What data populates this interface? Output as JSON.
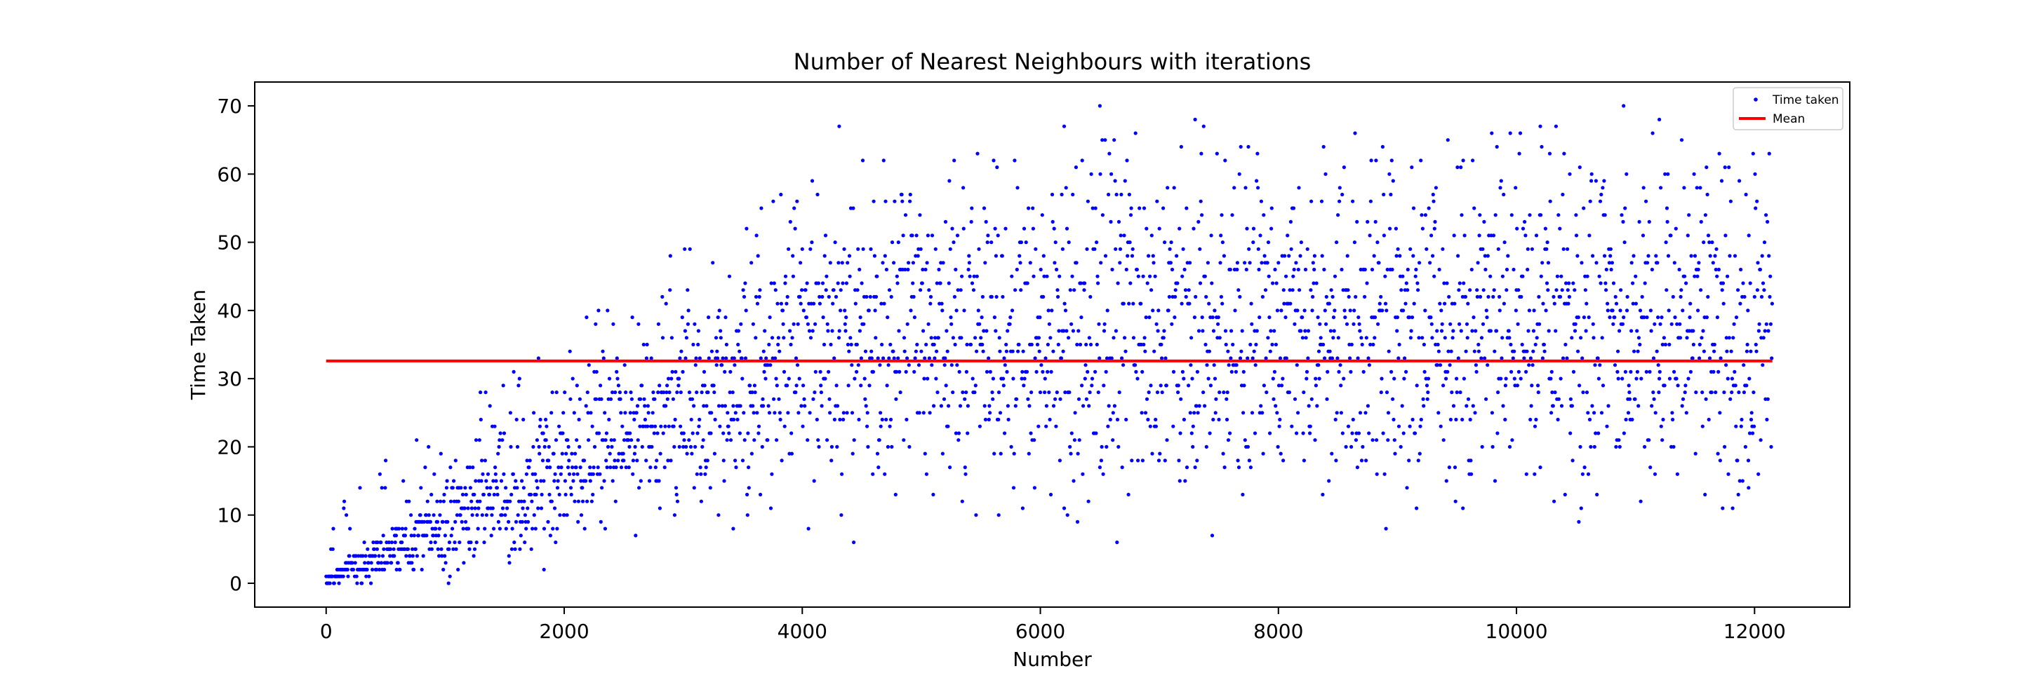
{
  "chart_data": {
    "type": "scatter",
    "title": "Number of Nearest Neighbours with iterations",
    "xlabel": "Number",
    "ylabel": "Time Taken",
    "xlim": [
      -600,
      12800
    ],
    "ylim": [
      -3.5,
      73.5
    ],
    "xticks": [
      0,
      2000,
      4000,
      6000,
      8000,
      10000,
      12000
    ],
    "yticks": [
      0,
      10,
      20,
      30,
      40,
      50,
      60,
      70
    ],
    "xtick_labels": [
      "0",
      "2000",
      "4000",
      "6000",
      "8000",
      "10000",
      "12000"
    ],
    "ytick_labels": [
      "0",
      "10",
      "20",
      "30",
      "40",
      "50",
      "60",
      "70"
    ],
    "grid": false,
    "legend": {
      "position": "top-right",
      "entries": [
        {
          "label": "Time taken",
          "marker": "point",
          "color": "#0000ff"
        },
        {
          "label": "Mean",
          "marker": "line",
          "color": "#ff0000"
        }
      ]
    },
    "series": [
      {
        "name": "Time taken",
        "kind": "scatter",
        "color": "#0000ff",
        "x_range": [
          0,
          12150
        ],
        "trend_breakpoints": [
          {
            "x": 0,
            "y_min": 0,
            "y_max": 1
          },
          {
            "x": 1000,
            "y_min": 3,
            "y_max": 15
          },
          {
            "x": 2000,
            "y_min": 8,
            "y_max": 27
          },
          {
            "x": 3000,
            "y_min": 14,
            "y_max": 40
          },
          {
            "x": 4000,
            "y_min": 17,
            "y_max": 51
          },
          {
            "x": 5000,
            "y_min": 17,
            "y_max": 54
          },
          {
            "x": 6000,
            "y_min": 17,
            "y_max": 55
          },
          {
            "x": 8000,
            "y_min": 18,
            "y_max": 56
          },
          {
            "x": 12150,
            "y_min": 18,
            "y_max": 57
          }
        ],
        "highlighted_points": [
          {
            "x": 170,
            "y": 10
          },
          {
            "x": 4310,
            "y": 67
          },
          {
            "x": 6500,
            "y": 70
          },
          {
            "x": 6200,
            "y": 67
          },
          {
            "x": 7300,
            "y": 68
          },
          {
            "x": 10900,
            "y": 70
          },
          {
            "x": 10200,
            "y": 67
          },
          {
            "x": 11200,
            "y": 68
          },
          {
            "x": 1830,
            "y": 2
          },
          {
            "x": 3420,
            "y": 8
          },
          {
            "x": 5650,
            "y": 10
          },
          {
            "x": 9550,
            "y": 11
          },
          {
            "x": 11950,
            "y": 14
          }
        ]
      },
      {
        "name": "Mean",
        "kind": "line",
        "color": "#ff0000",
        "x": [
          0,
          12150
        ],
        "y": [
          32.6,
          32.6
        ]
      }
    ]
  }
}
